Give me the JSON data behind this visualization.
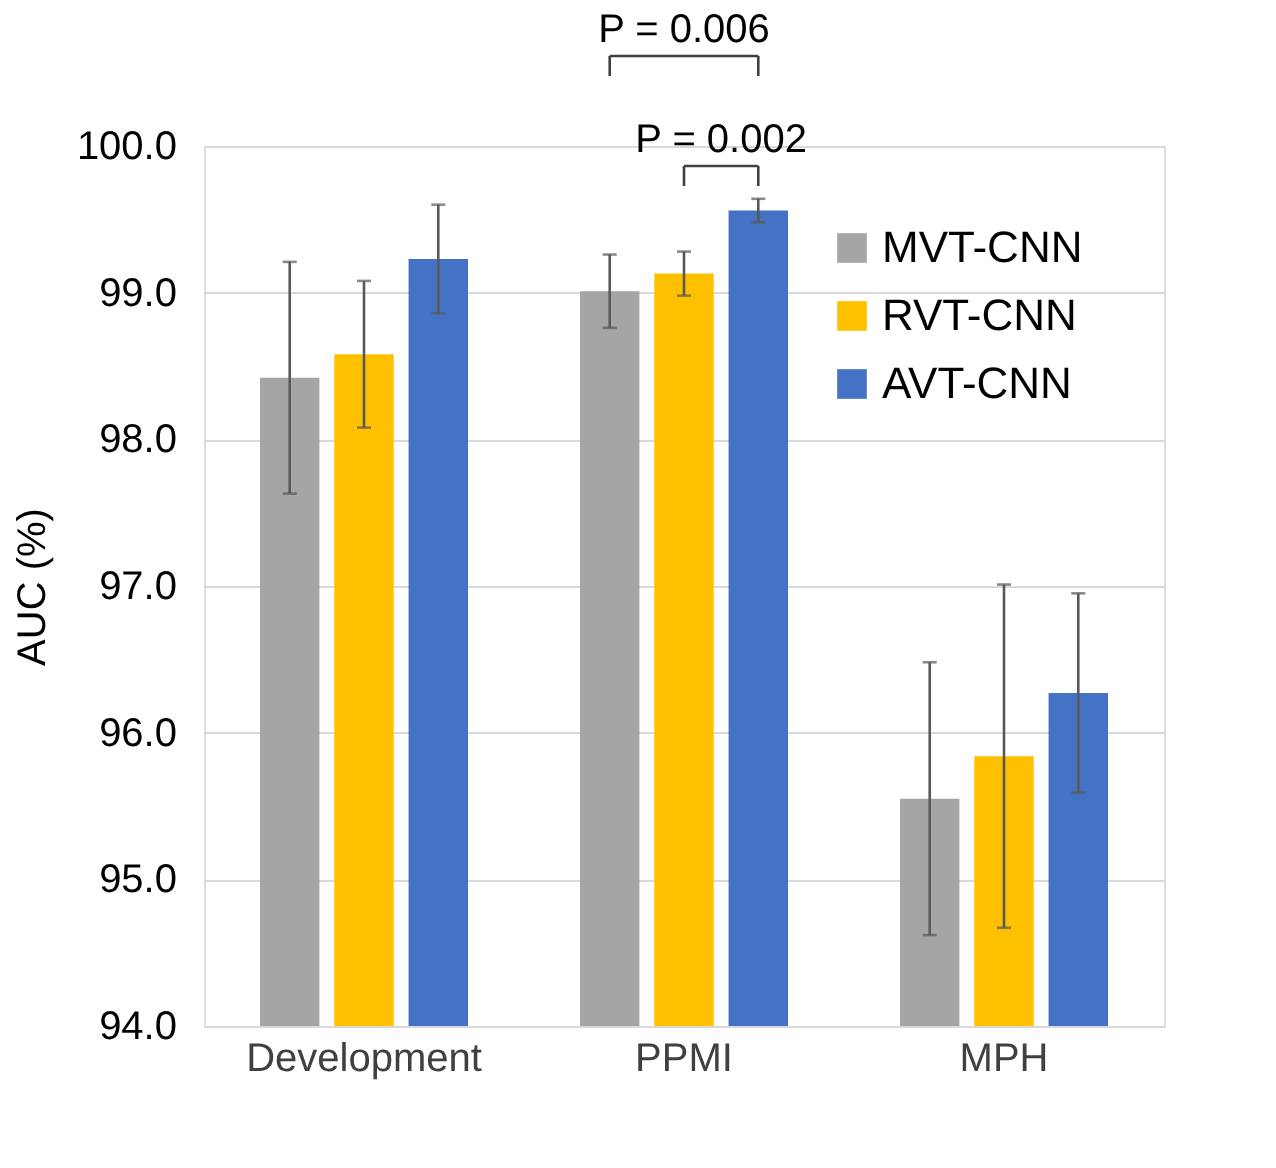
{
  "chart_data": {
    "type": "bar",
    "ylabel": "AUC (%)",
    "categories": [
      "Development",
      "PPMI",
      "MPH"
    ],
    "series": [
      {
        "name": "MVT-CNN",
        "color": "#a5a5a5",
        "values": [
          98.42,
          99.01,
          95.55
        ],
        "errors": [
          0.79,
          0.25,
          0.93
        ]
      },
      {
        "name": "RVT-CNN",
        "color": "#ffc000",
        "values": [
          98.58,
          99.13,
          95.84
        ],
        "errors": [
          0.5,
          0.15,
          1.17
        ]
      },
      {
        "name": "AVT-CNN",
        "color": "#4472c4",
        "values": [
          99.23,
          99.56,
          96.27
        ],
        "errors": [
          0.37,
          0.08,
          0.68
        ]
      }
    ],
    "ylim": [
      94,
      100
    ],
    "yticks": [
      {
        "value": 94,
        "label": "94.0"
      },
      {
        "value": 95,
        "label": "95.0"
      },
      {
        "value": 96,
        "label": "96.0"
      },
      {
        "value": 97,
        "label": "97.0"
      },
      {
        "value": 98,
        "label": "98.0"
      },
      {
        "value": 99,
        "label": "99.0"
      },
      {
        "value": 100,
        "label": "100.0"
      }
    ],
    "grid": "y",
    "legend": "top right",
    "annotations": [
      "P = 0.006",
      "P = 0.002"
    ]
  }
}
